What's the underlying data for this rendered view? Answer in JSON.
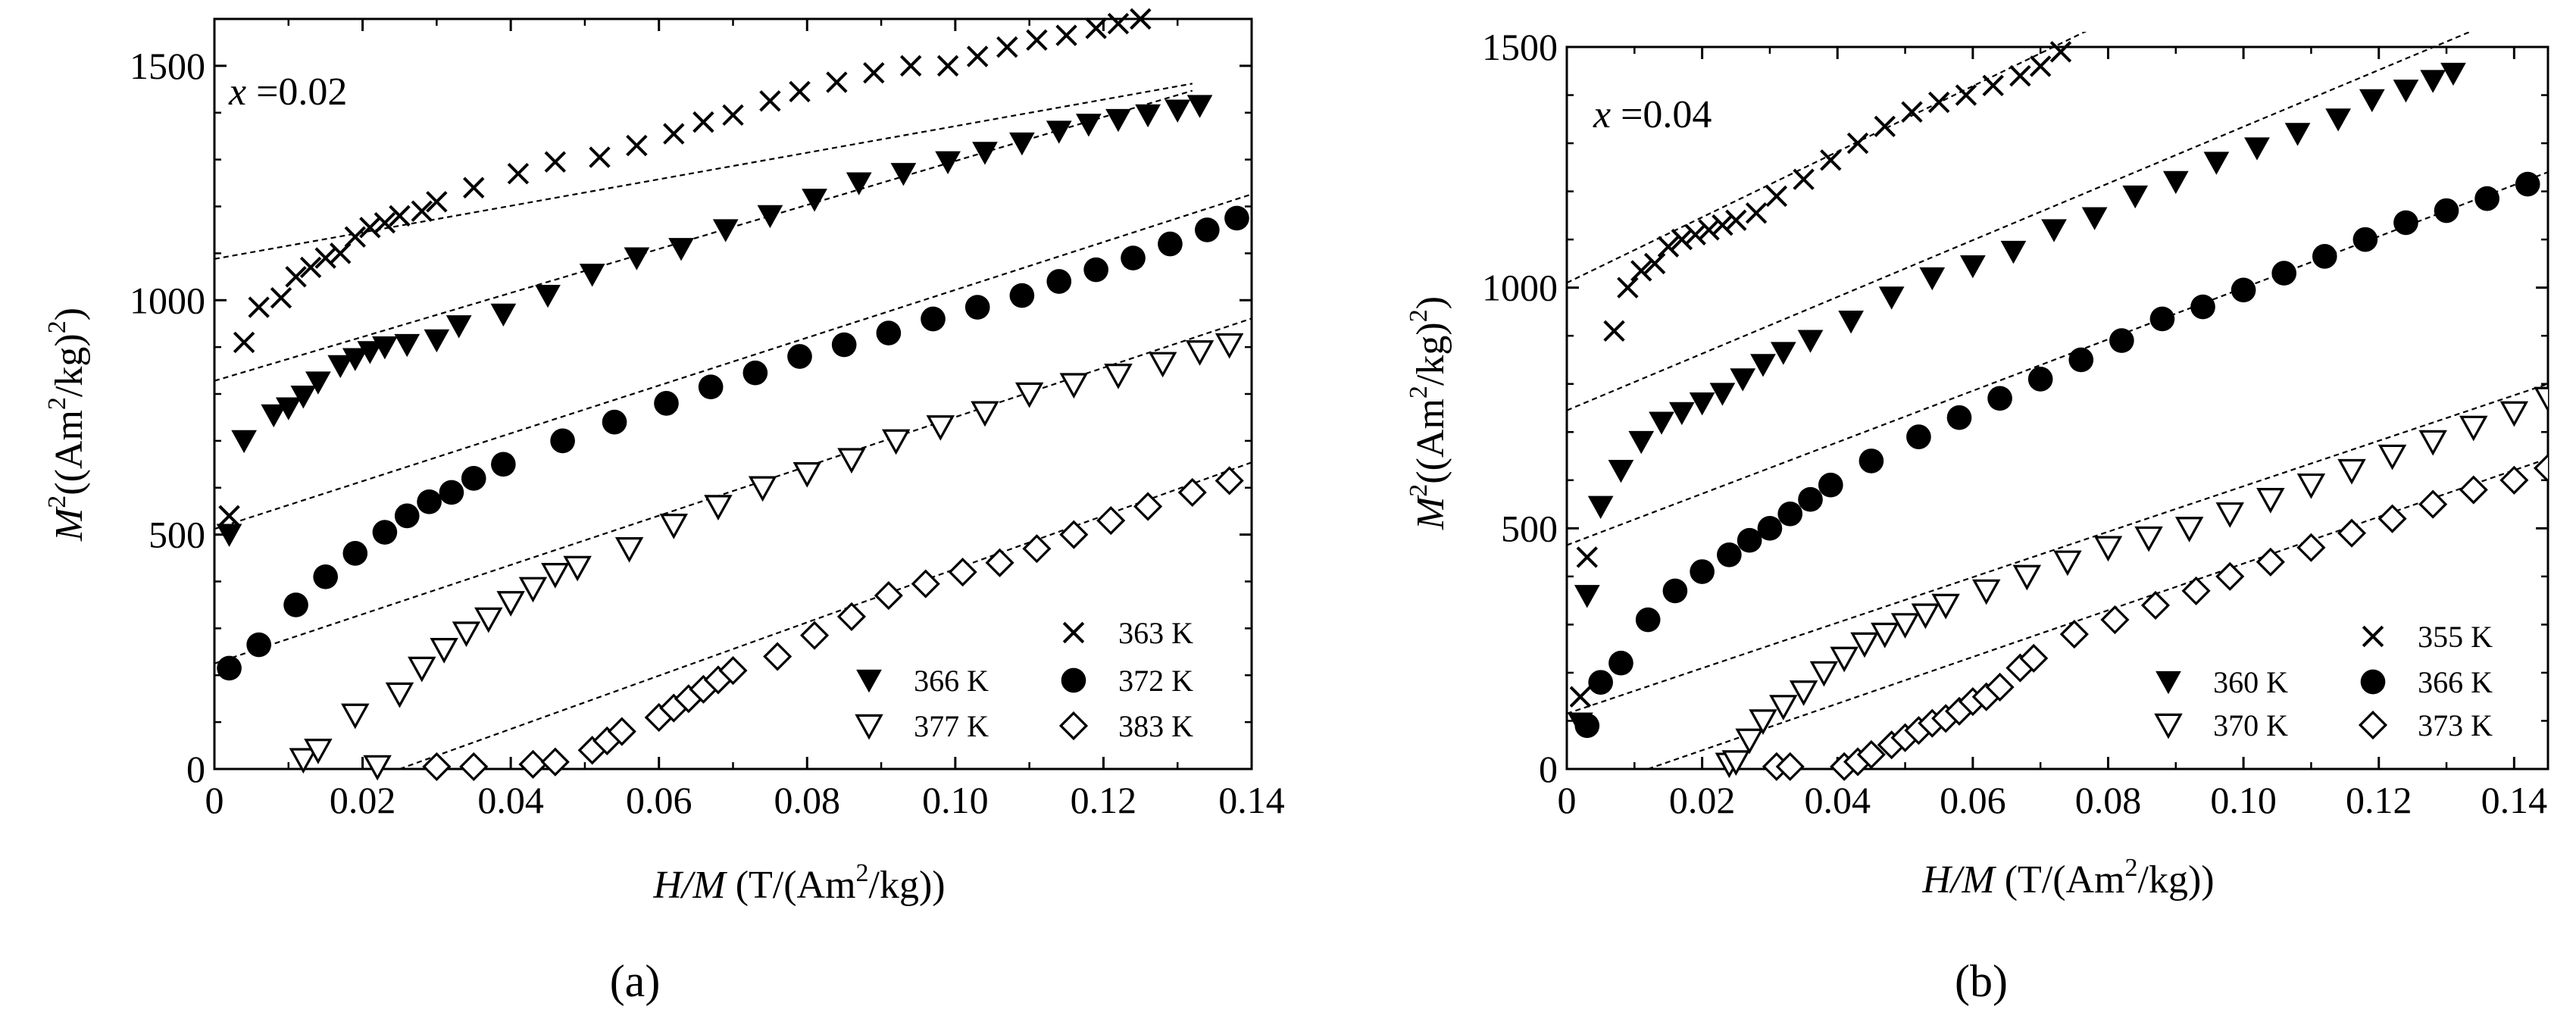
{
  "figure": {
    "panel_labels": [
      "(a)",
      "(b)"
    ]
  },
  "chart_data": [
    {
      "type": "scatter",
      "panel_label": "(a)",
      "annotation": {
        "italic": "x",
        "text": " =0.02"
      },
      "xlabel": {
        "italic": "H/M",
        "text": " (T/(Am",
        "sup": "2",
        "tail": "/kg))"
      },
      "ylabel": {
        "italic": "M",
        "sup1": "2",
        "text": "((Am",
        "sup2": "2",
        "mid": "/kg)",
        "sup3": "2",
        "tail": ")"
      },
      "xlim": [
        0,
        0.14
      ],
      "ylim": [
        0,
        1600
      ],
      "xticks": [
        0,
        0.02,
        0.04,
        0.06,
        0.08,
        0.1,
        0.12,
        0.14
      ],
      "xtick_labels": [
        "0",
        "0.02",
        "0.04",
        "0.06",
        "0.08",
        "0.10",
        "0.12",
        "0.14"
      ],
      "yticks": [
        0,
        500,
        1000,
        1500
      ],
      "ytick_labels": [
        "0",
        "500",
        "1000",
        "1500"
      ],
      "legend": [
        {
          "label": "363 K",
          "marker": "cross"
        },
        {
          "label": "366 K",
          "marker": "tri-down-filled"
        },
        {
          "label": "372 K",
          "marker": "circle-filled"
        },
        {
          "label": "377 K",
          "marker": "tri-down-open"
        },
        {
          "label": "383 K",
          "marker": "diamond-open"
        }
      ],
      "series": [
        {
          "name": "363 K",
          "marker": "cross",
          "x": [
            0.002,
            0.004,
            0.006,
            0.009,
            0.011,
            0.013,
            0.015,
            0.017,
            0.019,
            0.021,
            0.023,
            0.025,
            0.028,
            0.03,
            0.035,
            0.041,
            0.046,
            0.052,
            0.057,
            0.062,
            0.066,
            0.07,
            0.075,
            0.079,
            0.084,
            0.089,
            0.094,
            0.099,
            0.103,
            0.107,
            0.111,
            0.115,
            0.119,
            0.122,
            0.125
          ],
          "y": [
            540,
            910,
            985,
            1005,
            1050,
            1070,
            1090,
            1100,
            1135,
            1155,
            1165,
            1180,
            1190,
            1210,
            1240,
            1270,
            1295,
            1305,
            1330,
            1355,
            1380,
            1395,
            1425,
            1445,
            1465,
            1485,
            1500,
            1500,
            1520,
            1540,
            1555,
            1565,
            1580,
            1590,
            1600
          ]
        },
        {
          "name": "366 K",
          "marker": "tri-down-filled",
          "x": [
            0.002,
            0.004,
            0.008,
            0.01,
            0.012,
            0.014,
            0.017,
            0.019,
            0.021,
            0.023,
            0.026,
            0.03,
            0.033,
            0.039,
            0.045,
            0.051,
            0.057,
            0.063,
            0.069,
            0.075,
            0.081,
            0.087,
            0.093,
            0.099,
            0.104,
            0.109,
            0.114,
            0.118,
            0.122,
            0.126,
            0.13,
            0.133
          ],
          "y": [
            500,
            700,
            755,
            770,
            795,
            825,
            860,
            875,
            890,
            900,
            905,
            915,
            945,
            970,
            1010,
            1055,
            1090,
            1110,
            1150,
            1180,
            1215,
            1250,
            1270,
            1295,
            1315,
            1335,
            1360,
            1375,
            1385,
            1395,
            1405,
            1415
          ]
        },
        {
          "name": "372 K",
          "marker": "circle-filled",
          "x": [
            0.002,
            0.006,
            0.011,
            0.015,
            0.019,
            0.023,
            0.026,
            0.029,
            0.032,
            0.035,
            0.039,
            0.047,
            0.054,
            0.061,
            0.067,
            0.073,
            0.079,
            0.085,
            0.091,
            0.097,
            0.103,
            0.109,
            0.114,
            0.119,
            0.124,
            0.129,
            0.134,
            0.138
          ],
          "y": [
            215,
            265,
            350,
            410,
            460,
            505,
            540,
            570,
            590,
            620,
            650,
            700,
            740,
            780,
            815,
            845,
            880,
            905,
            930,
            960,
            985,
            1010,
            1040,
            1065,
            1090,
            1120,
            1150,
            1175
          ]
        },
        {
          "name": "377 K",
          "marker": "tri-down-open",
          "x": [
            0.012,
            0.014,
            0.019,
            0.022,
            0.025,
            0.028,
            0.031,
            0.034,
            0.037,
            0.04,
            0.043,
            0.046,
            0.049,
            0.056,
            0.062,
            0.068,
            0.074,
            0.08,
            0.086,
            0.092,
            0.098,
            0.104,
            0.11,
            0.116,
            0.122,
            0.128,
            0.133,
            0.137
          ],
          "y": [
            20,
            40,
            115,
            5,
            160,
            215,
            255,
            290,
            320,
            355,
            385,
            415,
            430,
            470,
            520,
            560,
            600,
            630,
            660,
            700,
            730,
            760,
            800,
            820,
            840,
            865,
            890,
            905
          ]
        },
        {
          "name": "383 K",
          "marker": "diamond-open",
          "x": [
            0.03,
            0.035,
            0.043,
            0.046,
            0.051,
            0.053,
            0.055,
            0.06,
            0.062,
            0.064,
            0.066,
            0.068,
            0.07,
            0.076,
            0.081,
            0.086,
            0.091,
            0.096,
            0.101,
            0.106,
            0.111,
            0.116,
            0.121,
            0.126,
            0.132,
            0.137
          ],
          "y": [
            5,
            5,
            10,
            15,
            40,
            60,
            80,
            110,
            130,
            150,
            170,
            190,
            210,
            240,
            285,
            325,
            370,
            395,
            420,
            440,
            470,
            500,
            530,
            560,
            590,
            615
          ]
        }
      ],
      "fit_lines": [
        {
          "name": "363 K",
          "x": [
            0,
            0.132
          ],
          "y": [
            1088,
            1462
          ]
        },
        {
          "name": "366 K",
          "x": [
            0,
            0.132
          ],
          "y": [
            828,
            1447
          ]
        },
        {
          "name": "372 K",
          "x": [
            0,
            0.14
          ],
          "y": [
            512,
            1226
          ]
        },
        {
          "name": "377 K",
          "x": [
            0,
            0.14
          ],
          "y": [
            225,
            961
          ]
        },
        {
          "name": "383 K",
          "x": [
            0.025,
            0.14
          ],
          "y": [
            0,
            654
          ]
        }
      ]
    },
    {
      "type": "scatter",
      "panel_label": "(b)",
      "annotation": {
        "italic": "x",
        "text": " =0.04"
      },
      "xlabel": {
        "italic": "H/M",
        "text": " (T/(Am",
        "sup": "2",
        "tail": "/kg))"
      },
      "ylabel": {
        "italic": "M",
        "sup1": "2",
        "text": "((Am",
        "sup2": "2",
        "mid": "/kg)",
        "sup3": "2",
        "tail": ")"
      },
      "xlim": [
        0,
        0.145
      ],
      "ylim": [
        0,
        1500
      ],
      "xticks": [
        0,
        0.02,
        0.04,
        0.06,
        0.08,
        0.1,
        0.12,
        0.14
      ],
      "xtick_labels": [
        "0",
        "0.02",
        "0.04",
        "0.06",
        "0.08",
        "0.10",
        "0.12",
        "0.14"
      ],
      "yticks": [
        0,
        500,
        1000,
        1500
      ],
      "ytick_labels": [
        "0",
        "500",
        "1000",
        "1500"
      ],
      "legend": [
        {
          "label": "355 K",
          "marker": "cross"
        },
        {
          "label": "360 K",
          "marker": "tri-down-filled"
        },
        {
          "label": "366 K",
          "marker": "circle-filled"
        },
        {
          "label": "370 K",
          "marker": "tri-down-open"
        },
        {
          "label": "373 K",
          "marker": "diamond-open"
        }
      ],
      "series": [
        {
          "name": "355 K",
          "marker": "cross",
          "x": [
            0.002,
            0.003,
            0.007,
            0.009,
            0.011,
            0.013,
            0.015,
            0.017,
            0.019,
            0.021,
            0.023,
            0.025,
            0.028,
            0.031,
            0.035,
            0.039,
            0.043,
            0.047,
            0.051,
            0.055,
            0.059,
            0.063,
            0.067,
            0.07,
            0.073
          ],
          "y": [
            150,
            440,
            910,
            1000,
            1035,
            1050,
            1085,
            1100,
            1110,
            1120,
            1130,
            1140,
            1155,
            1190,
            1225,
            1265,
            1300,
            1335,
            1365,
            1385,
            1400,
            1420,
            1440,
            1460,
            1490
          ]
        },
        {
          "name": "360 K",
          "marker": "tri-down-filled",
          "x": [
            0.002,
            0.003,
            0.005,
            0.008,
            0.011,
            0.014,
            0.017,
            0.02,
            0.023,
            0.026,
            0.029,
            0.032,
            0.036,
            0.042,
            0.048,
            0.054,
            0.06,
            0.066,
            0.072,
            0.078,
            0.084,
            0.09,
            0.096,
            0.102,
            0.108,
            0.114,
            0.119,
            0.124,
            0.128,
            0.131
          ],
          "y": [
            95,
            360,
            545,
            620,
            680,
            720,
            740,
            760,
            780,
            810,
            840,
            865,
            890,
            930,
            980,
            1020,
            1045,
            1075,
            1120,
            1145,
            1190,
            1220,
            1260,
            1290,
            1320,
            1350,
            1390,
            1410,
            1430,
            1445
          ]
        },
        {
          "name": "366 K",
          "marker": "circle-filled",
          "x": [
            0.003,
            0.005,
            0.008,
            0.012,
            0.016,
            0.02,
            0.024,
            0.027,
            0.03,
            0.033,
            0.036,
            0.039,
            0.045,
            0.052,
            0.058,
            0.064,
            0.07,
            0.076,
            0.082,
            0.088,
            0.094,
            0.1,
            0.106,
            0.112,
            0.118,
            0.124,
            0.13,
            0.136,
            0.142
          ],
          "y": [
            90,
            180,
            220,
            310,
            370,
            410,
            445,
            475,
            500,
            530,
            560,
            590,
            640,
            690,
            730,
            770,
            810,
            850,
            890,
            935,
            960,
            995,
            1030,
            1065,
            1100,
            1135,
            1160,
            1185,
            1215
          ]
        },
        {
          "name": "370 K",
          "marker": "tri-down-open",
          "x": [
            0.024,
            0.025,
            0.027,
            0.029,
            0.032,
            0.035,
            0.038,
            0.041,
            0.044,
            0.047,
            0.05,
            0.053,
            0.056,
            0.062,
            0.068,
            0.074,
            0.08,
            0.086,
            0.092,
            0.098,
            0.104,
            0.11,
            0.116,
            0.122,
            0.128,
            0.134,
            0.14,
            0.145
          ],
          "y": [
            10,
            15,
            60,
            100,
            130,
            160,
            200,
            230,
            260,
            280,
            300,
            320,
            340,
            370,
            400,
            430,
            460,
            480,
            500,
            530,
            560,
            590,
            620,
            650,
            680,
            710,
            740,
            770
          ]
        },
        {
          "name": "373 K",
          "marker": "diamond-open",
          "x": [
            0.031,
            0.033,
            0.041,
            0.043,
            0.045,
            0.048,
            0.05,
            0.052,
            0.054,
            0.056,
            0.058,
            0.06,
            0.062,
            0.064,
            0.067,
            0.069,
            0.075,
            0.081,
            0.087,
            0.093,
            0.098,
            0.104,
            0.11,
            0.116,
            0.122,
            0.128,
            0.134,
            0.14,
            0.145
          ],
          "y": [
            5,
            5,
            5,
            15,
            30,
            50,
            65,
            80,
            95,
            105,
            120,
            140,
            150,
            170,
            210,
            230,
            280,
            310,
            340,
            370,
            400,
            430,
            460,
            490,
            520,
            550,
            580,
            600,
            625
          ]
        }
      ],
      "fit_lines": [
        {
          "name": "355 K",
          "x": [
            0,
            0.08
          ],
          "y": [
            1010,
            1555
          ]
        },
        {
          "name": "360 K",
          "x": [
            0,
            0.14
          ],
          "y": [
            745,
            1570
          ]
        },
        {
          "name": "366 K",
          "x": [
            0,
            0.145
          ],
          "y": [
            465,
            1240
          ]
        },
        {
          "name": "370 K",
          "x": [
            0,
            0.145
          ],
          "y": [
            115,
            800
          ]
        },
        {
          "name": "373 K",
          "x": [
            0.012,
            0.145
          ],
          "y": [
            0,
            645
          ]
        }
      ]
    }
  ]
}
